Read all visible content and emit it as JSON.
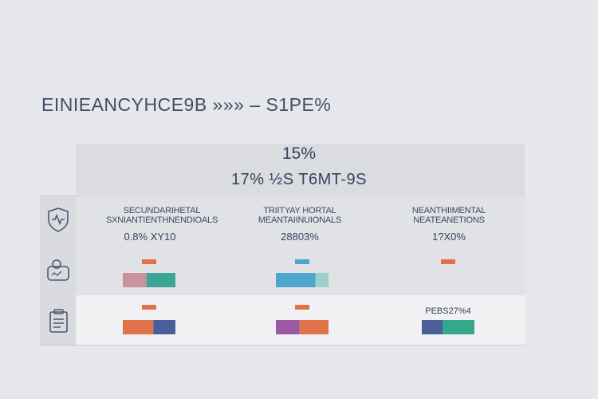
{
  "header": {
    "title": "EINIEANCYHCE9B »»» – S1PE%",
    "big_pct": "15%",
    "subtitle": "17% ½S T6MT-9S"
  },
  "columns": [
    {
      "heading_line1": "SECUNDARIHETAL",
      "heading_line2": "SXNIANTIENTHNENDIOALS",
      "value": "0.8% XY10"
    },
    {
      "heading_line1": "TRIITYAY HORTAL",
      "heading_line2": "MEANTAIINUIONALS",
      "value": "28803%"
    },
    {
      "heading_line1": "NEANTHIIMENTAL",
      "heading_line2": "NEATEANETIONS",
      "value": "1?X0%"
    }
  ],
  "rows": [
    {
      "icon": "shield-pulse-icon"
    },
    {
      "icon": "user-card-icon"
    },
    {
      "icon": "clipboard-icon"
    }
  ],
  "bar_label": "PEBS27%4",
  "colors": {
    "pink": "#c9929d",
    "teal": "#3ba596",
    "cyan": "#4ea6cf",
    "orange": "#e07249",
    "navy": "#4a5f9a",
    "purple": "#9a5aa3",
    "light_teal": "#9fcfca",
    "green_teal": "#35a88c"
  },
  "chart_data": {
    "type": "bar",
    "categories": [
      "column-1",
      "column-2",
      "column-3"
    ],
    "rows": [
      {
        "cells": [
          {
            "segments": [
              {
                "color": "#c9929d",
                "value": 45
              },
              {
                "color": "#3ba596",
                "value": 55
              }
            ],
            "cap_color": "#e07249"
          },
          {
            "segments": [
              {
                "color": "#4ea6cf",
                "value": 75
              },
              {
                "color": "#9fcfca",
                "value": 25
              }
            ],
            "cap_color": "#4ea6cf"
          },
          {
            "segments": [],
            "cap_color": "#e07249"
          }
        ]
      },
      {
        "cells": [
          {
            "segments": [
              {
                "color": "#e07249",
                "value": 58
              },
              {
                "color": "#4a5f9a",
                "value": 42
              }
            ],
            "cap_color": "#e07249"
          },
          {
            "segments": [
              {
                "color": "#9a5aa3",
                "value": 45
              },
              {
                "color": "#e07249",
                "value": 55
              }
            ],
            "cap_color": "#e07249"
          },
          {
            "segments": [
              {
                "color": "#4a5f9a",
                "value": 40
              },
              {
                "color": "#35a88c",
                "value": 60
              }
            ],
            "cap_color": ""
          }
        ]
      }
    ]
  }
}
